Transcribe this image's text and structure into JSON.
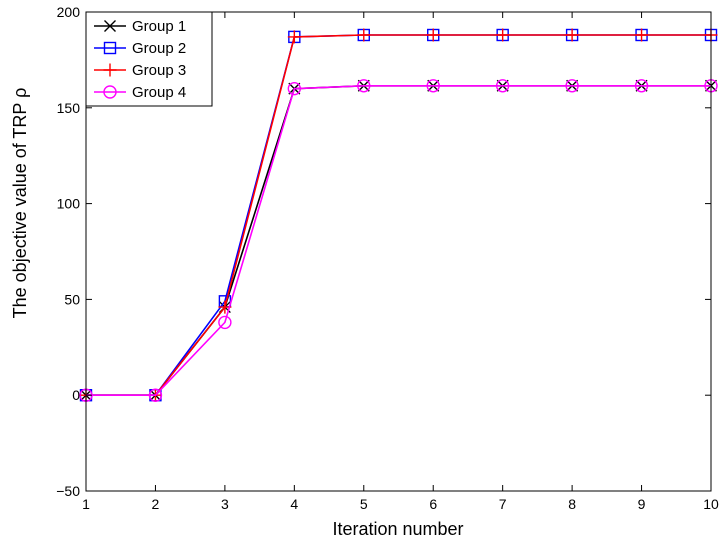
{
  "chart_data": {
    "type": "line",
    "title": "",
    "xlabel": "Iteration number",
    "ylabel": "The objective value of TRP ρ",
    "xlim": [
      1,
      10
    ],
    "ylim": [
      -50,
      200
    ],
    "xticks": [
      "1",
      "2",
      "3",
      "4",
      "5",
      "6",
      "7",
      "8",
      "9",
      "10"
    ],
    "yticks": [
      "−50",
      "0",
      "50",
      "100",
      "150",
      "200"
    ],
    "x": [
      1,
      2,
      3,
      4,
      5,
      6,
      7,
      8,
      9,
      10
    ],
    "grid": false,
    "legend": "top-left",
    "series": [
      {
        "name": "Group 1",
        "color": "#000000",
        "marker": "x",
        "values": [
          0,
          0,
          46,
          160,
          161.5,
          161.5,
          161.5,
          161.5,
          161.5,
          161.5
        ]
      },
      {
        "name": "Group 2",
        "color": "#0000ff",
        "marker": "square",
        "values": [
          0,
          0,
          49,
          187,
          188,
          188,
          188,
          188,
          188,
          188
        ]
      },
      {
        "name": "Group 3",
        "color": "#ff0000",
        "marker": "plus",
        "values": [
          0,
          0,
          46,
          187,
          188,
          188,
          188,
          188,
          188,
          188
        ]
      },
      {
        "name": "Group 4",
        "color": "#ff00ff",
        "marker": "circle",
        "values": [
          0,
          0,
          38,
          160,
          161.5,
          161.5,
          161.5,
          161.5,
          161.5,
          161.5
        ]
      }
    ]
  }
}
